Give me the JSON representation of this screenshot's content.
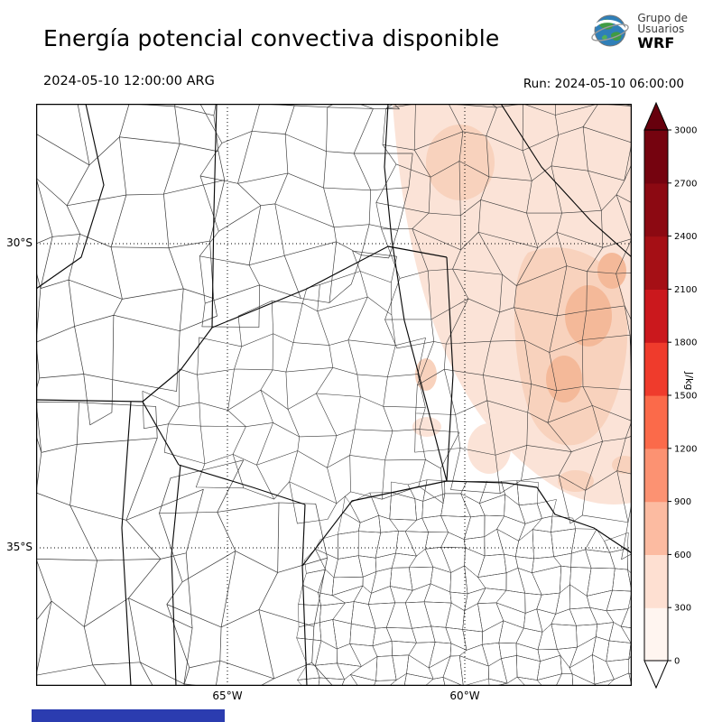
{
  "header": {
    "title": "Energía potencial convectiva disponible",
    "valid_time": "2024-05-10 12:00:00 ARG",
    "run_label": "Run: 2024-05-10 06:00:00"
  },
  "logo": {
    "line1": "Grupo de",
    "line2": "Usuarios",
    "line3": "WRF"
  },
  "map": {
    "lat_labels": [
      "30°S",
      "35°S"
    ],
    "lon_labels": [
      "65°W",
      "60°W"
    ]
  },
  "colorbar": {
    "unit": "J/kg",
    "ticks": [
      0,
      300,
      600,
      900,
      1200,
      1500,
      1800,
      2100,
      2400,
      2700,
      3000
    ],
    "max": 3000,
    "colors": [
      "#fff5f0",
      "#fee0d2",
      "#fcbba1",
      "#fc9272",
      "#fb6a4a",
      "#ef3b2c",
      "#cb181d",
      "#a50f15",
      "#8c0912",
      "#75030f"
    ],
    "over_color": "#67000d",
    "under_color": "#ffffff"
  },
  "shading_colors": {
    "level1": "#fbe3d7",
    "level2": "#f8d2bd",
    "level3": "#f4b999"
  },
  "footer": {
    "bar_color": "#2b3cb0"
  }
}
